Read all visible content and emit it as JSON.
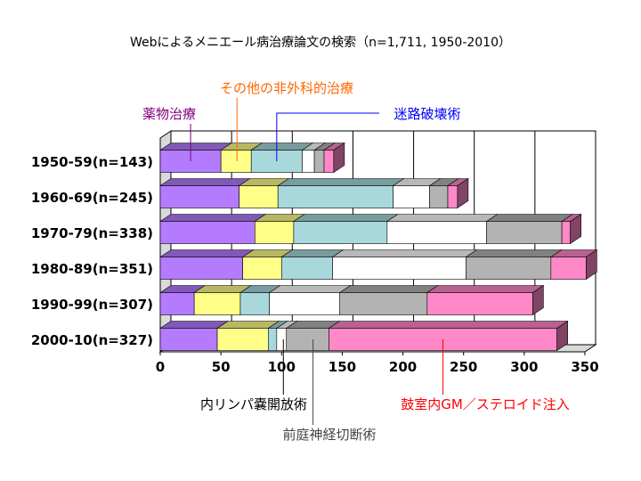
{
  "chart_data": {
    "type": "bar",
    "orientation": "horizontal",
    "stacked": true,
    "three_d": true,
    "title": "Webによるメニエール病治療論文の検索（n=1,711, 1950-2010）",
    "xlabel": "",
    "ylabel": "",
    "xlim": [
      0,
      350
    ],
    "x_ticks": [
      "0",
      "50",
      "100",
      "150",
      "200",
      "250",
      "300",
      "350"
    ],
    "grid": "vertical",
    "categories": [
      "1950-59(n=143)",
      "1960-69(n=245)",
      "1970-79(n=338)",
      "1980-89(n=351)",
      "1990-99(n=307)",
      "2000-10(n=327)"
    ],
    "series": [
      {
        "name": "薬物治療",
        "color": "#b57bff",
        "values": [
          50,
          65,
          78,
          68,
          28,
          47
        ]
      },
      {
        "name": "その他の非外科的治療",
        "color": "#ffff88",
        "values": [
          25,
          32,
          32,
          32,
          38,
          42
        ]
      },
      {
        "name": "迷路破壊術",
        "color": "#a8d8dc",
        "values": [
          42,
          95,
          77,
          42,
          24,
          7
        ]
      },
      {
        "name": "内リンパ嚢開放術",
        "color": "#ffffff",
        "values": [
          10,
          30,
          82,
          110,
          58,
          8
        ]
      },
      {
        "name": "前庭神経切断術",
        "color": "#b3b3b3",
        "values": [
          8,
          15,
          62,
          70,
          72,
          35
        ]
      },
      {
        "name": "鼓室内GM／ステロイド注入",
        "color": "#ff88c8",
        "values": [
          8,
          8,
          7,
          29,
          87,
          188
        ]
      }
    ],
    "callouts": [
      {
        "label": "薬物治療",
        "series": 0,
        "color": "#800080"
      },
      {
        "label": "その他の非外科的治療",
        "series": 1,
        "color": "#ff6600"
      },
      {
        "label": "迷路破壊術",
        "series": 2,
        "color": "#0000ff"
      },
      {
        "label": "内リンパ嚢開放術",
        "series": 3,
        "color": "#000000"
      },
      {
        "label": "前庭神経切断術",
        "series": 4,
        "color": "#444444"
      },
      {
        "label": "鼓室内GM／ステロイド注入",
        "series": 5,
        "color": "#ff0000"
      }
    ]
  }
}
